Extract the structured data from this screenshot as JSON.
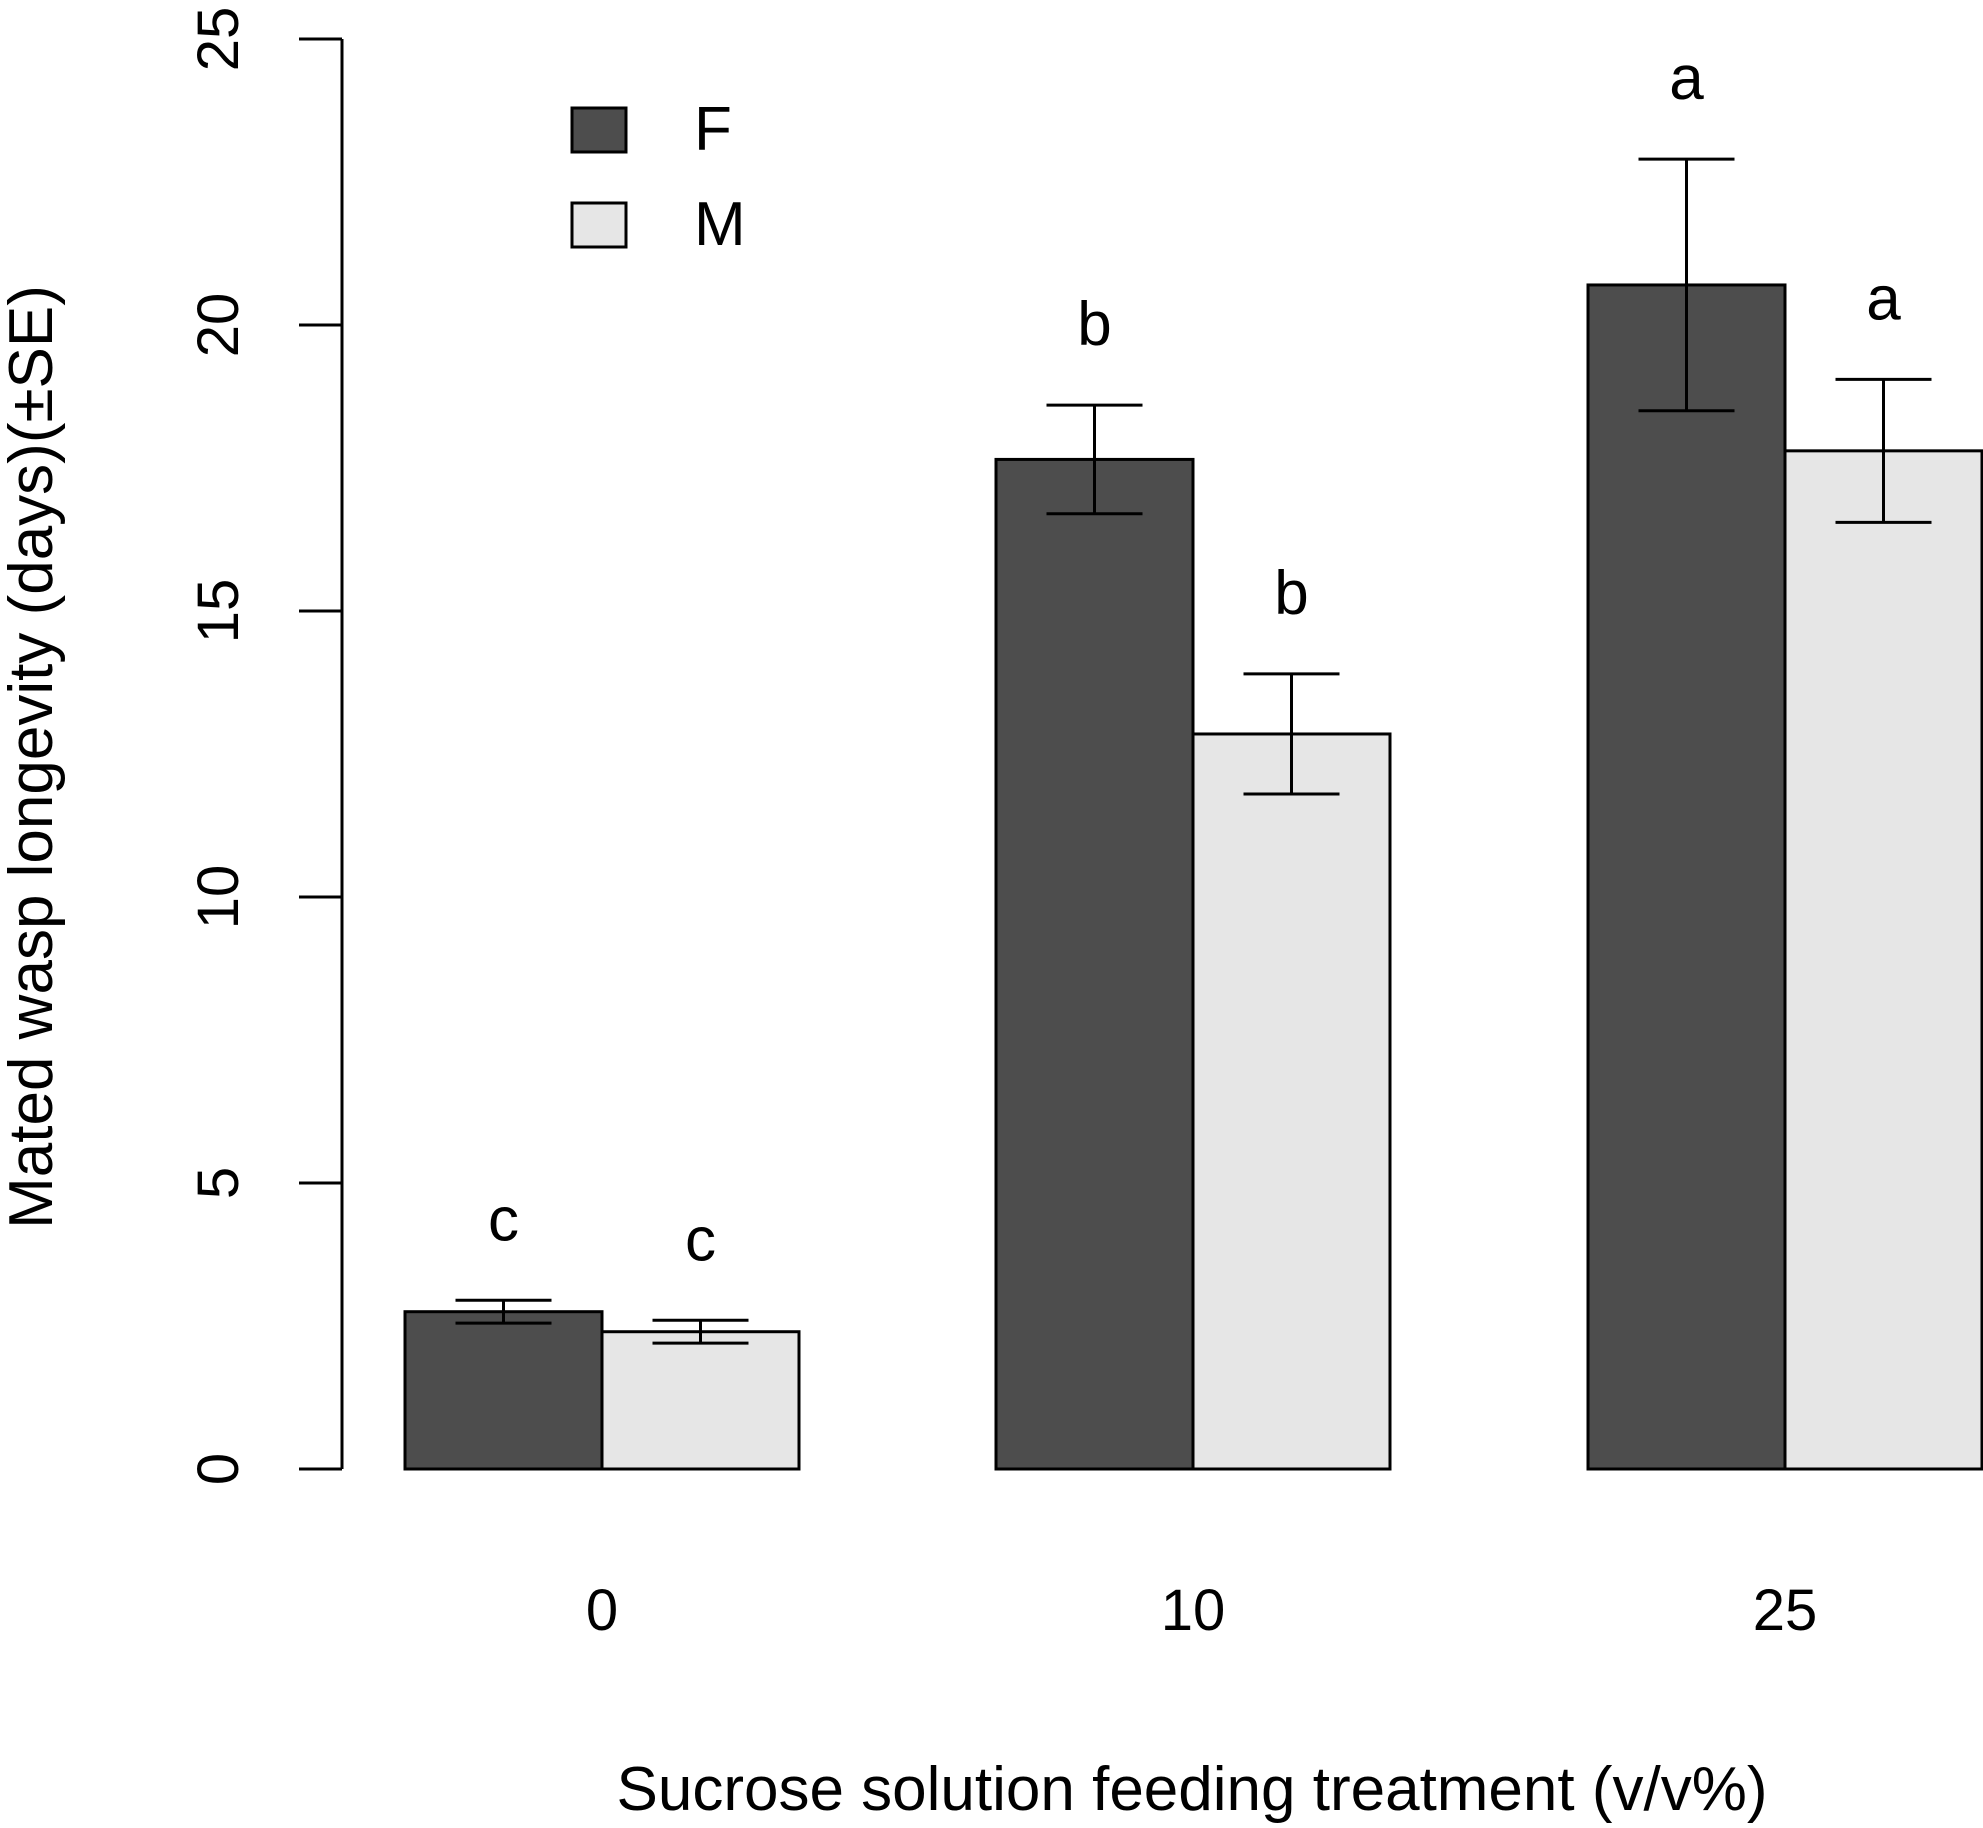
{
  "chart_data": {
    "type": "bar",
    "title": "",
    "xlabel": "Sucrose solution feeding treatment (v/v%)",
    "ylabel": "Mated wasp longevity (days)(±SE)",
    "categories": [
      "0",
      "10",
      "25"
    ],
    "ylim": [
      0,
      25
    ],
    "yticks": [
      0,
      5,
      10,
      15,
      20,
      25
    ],
    "legend_position": "top-left",
    "series": [
      {
        "name": "F",
        "color": "#4d4d4d",
        "values": [
          2.75,
          17.65,
          20.7
        ],
        "se": [
          0.2,
          0.95,
          2.2
        ],
        "letters": [
          "c",
          "b",
          "a"
        ]
      },
      {
        "name": "M",
        "color": "#e6e6e6",
        "values": [
          2.4,
          12.85,
          17.8
        ],
        "se": [
          0.2,
          1.05,
          1.25
        ],
        "letters": [
          "c",
          "b",
          "a"
        ]
      }
    ]
  }
}
